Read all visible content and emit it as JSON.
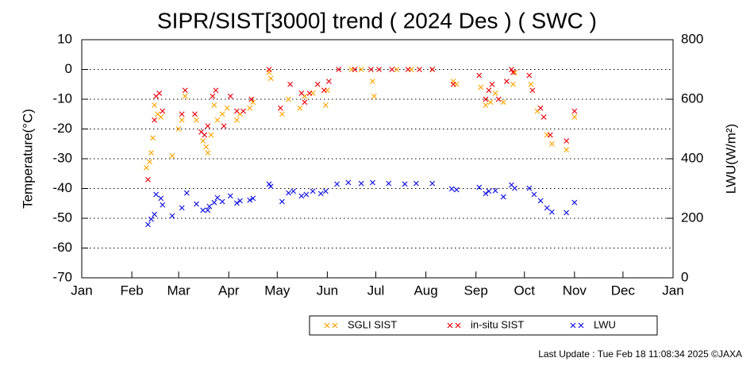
{
  "chart_data": {
    "type": "scatter",
    "title": "SIPR/SIST[3000] trend ( 2024 Des ) ( SWC )",
    "y_label": "Temperature(°C)",
    "y2_label": "LWU(W/m²)",
    "footnote": "Last Update : Tue Feb 18 11:08:34 2025 ©JAXA",
    "xlim": [
      0,
      366
    ],
    "xticks": [
      {
        "value": 0,
        "label": "Jan"
      },
      {
        "value": 31,
        "label": "Feb"
      },
      {
        "value": 60,
        "label": "Mar"
      },
      {
        "value": 91,
        "label": "Apr"
      },
      {
        "value": 121,
        "label": "May"
      },
      {
        "value": 152,
        "label": "Jun"
      },
      {
        "value": 182,
        "label": "Jul"
      },
      {
        "value": 213,
        "label": "Aug"
      },
      {
        "value": 244,
        "label": "Sep"
      },
      {
        "value": 274,
        "label": "Oct"
      },
      {
        "value": 305,
        "label": "Nov"
      },
      {
        "value": 335,
        "label": "Dec"
      },
      {
        "value": 366,
        "label": "Jan"
      }
    ],
    "ylim": [
      -70,
      10
    ],
    "yticks": [
      10,
      0,
      -10,
      -20,
      -30,
      -40,
      -50,
      -60,
      -70
    ],
    "y2lim": [
      0,
      800
    ],
    "y2ticks": [
      0,
      200,
      400,
      600,
      800
    ],
    "grid": true,
    "legend": "bottom",
    "series": [
      {
        "name": "SGLI SIST",
        "color": "#ffa500",
        "x": [
          40,
          42,
          43,
          44,
          45,
          47,
          49,
          56,
          60,
          62,
          64,
          71,
          75,
          77,
          78,
          80,
          82,
          84,
          87,
          90,
          96,
          98,
          104,
          106,
          116,
          117,
          124,
          128,
          135,
          138,
          143,
          151,
          152,
          167,
          173,
          180,
          181,
          195,
          204,
          217,
          230,
          232,
          247,
          250,
          253,
          256,
          261,
          267,
          268,
          278,
          282,
          288,
          291,
          300,
          305
        ],
        "values": [
          -33,
          -31,
          -28,
          -23,
          -12,
          -15,
          -16,
          -29,
          -20,
          -17,
          -9,
          -17,
          -24,
          -26,
          -28,
          -22,
          -12,
          -17,
          -15,
          -13,
          -17,
          -15,
          -13,
          -11,
          -1,
          -3,
          -15,
          -10,
          -13,
          -9,
          -8,
          -12,
          -7,
          0,
          0,
          -4,
          -9,
          0,
          0,
          0,
          -4,
          -5,
          -6,
          -12,
          -11,
          -8,
          -11,
          -5,
          -1,
          -5,
          -14,
          -22,
          -25,
          -27,
          -16
        ]
      },
      {
        "name": "in-situ SIST",
        "color": "#e8000b",
        "x": [
          41,
          45,
          46,
          48,
          50,
          62,
          64,
          70,
          74,
          76,
          78,
          81,
          83,
          88,
          92,
          96,
          100,
          105,
          116,
          123,
          129,
          136,
          138,
          141,
          146,
          150,
          153,
          159,
          169,
          179,
          184,
          192,
          202,
          209,
          217,
          230,
          246,
          250,
          252,
          254,
          258,
          263,
          266,
          267,
          277,
          279,
          284,
          286,
          290,
          300,
          305
        ],
        "values": [
          -37,
          -17,
          -9,
          -8,
          -14,
          -15,
          -7,
          -15,
          -21,
          -22,
          -19,
          -9,
          -7,
          -19,
          -9,
          -14,
          -14,
          -10,
          0,
          -13,
          -5,
          -8,
          -11,
          -8,
          -5,
          -7,
          -4,
          0,
          0,
          0,
          0,
          0,
          0,
          0,
          0,
          -5,
          -2,
          -10,
          -7,
          -5,
          -10,
          -4,
          0,
          -1,
          -2,
          -7,
          -13,
          -16,
          -22,
          -24,
          -14
        ]
      },
      {
        "name": "LWU",
        "color": "#1010e0",
        "axis": "y2",
        "x": [
          41,
          43,
          45,
          46,
          49,
          50,
          56,
          62,
          65,
          71,
          75,
          78,
          79,
          82,
          84,
          87,
          92,
          96,
          98,
          104,
          106,
          116,
          117,
          124,
          128,
          131,
          136,
          139,
          143,
          148,
          151,
          158,
          165,
          173,
          180,
          190,
          200,
          207,
          217,
          229,
          232,
          246,
          250,
          252,
          256,
          261,
          266,
          268,
          277,
          280,
          284,
          288,
          291,
          300,
          305
        ],
        "values": [
          179,
          197,
          213,
          280,
          267,
          245,
          208,
          235,
          285,
          248,
          227,
          227,
          240,
          253,
          269,
          256,
          275,
          251,
          259,
          261,
          267,
          315,
          307,
          256,
          285,
          291,
          275,
          280,
          291,
          283,
          291,
          315,
          320,
          317,
          320,
          317,
          315,
          317,
          317,
          299,
          296,
          304,
          283,
          291,
          293,
          272,
          312,
          301,
          301,
          280,
          259,
          235,
          221,
          219,
          253
        ]
      }
    ]
  }
}
